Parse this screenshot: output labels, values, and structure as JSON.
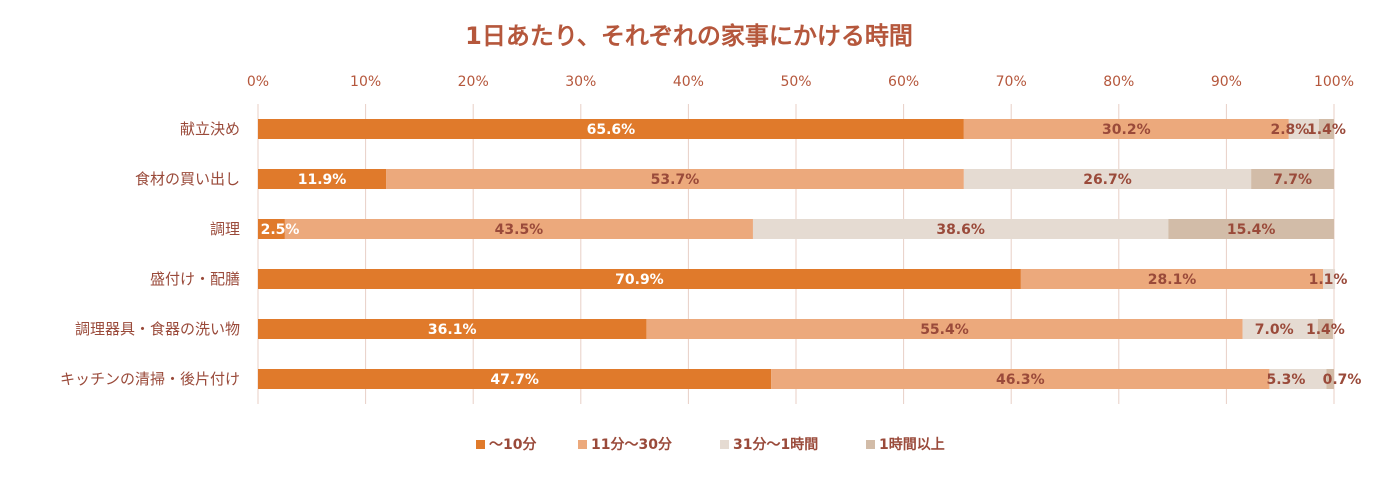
{
  "chart_data": {
    "type": "bar",
    "orientation": "horizontal",
    "stacked": "percent",
    "title": "1日あたり、それぞれの家事にかける時間",
    "x_ticks": [
      "0%",
      "10%",
      "20%",
      "30%",
      "40%",
      "50%",
      "60%",
      "70%",
      "80%",
      "90%",
      "100%"
    ],
    "xlim": [
      0,
      100
    ],
    "categories": [
      "献立決め",
      "食材の買い出し",
      "調理",
      "盛付け・配膳",
      "調理器具・食器の洗い物",
      "キッチンの清掃・後片付け"
    ],
    "series": [
      {
        "name": "～10分",
        "color": "#e07a2b",
        "label_color": "#ffffff",
        "values": [
          65.6,
          11.9,
          2.5,
          70.9,
          36.1,
          47.7
        ],
        "labels": [
          "65.6%",
          "11.9%",
          "2.5%",
          "70.9%",
          "36.1%",
          "47.7%"
        ]
      },
      {
        "name": "11分～30分",
        "color": "#eca97c",
        "label_color": "#9a4a3a",
        "values": [
          30.2,
          53.7,
          43.5,
          28.1,
          55.4,
          46.3
        ],
        "labels": [
          "30.2%",
          "53.7%",
          "43.5%",
          "28.1%",
          "55.4%",
          "46.3%"
        ]
      },
      {
        "name": "31分～1時間",
        "color": "#e5dbd2",
        "label_color": "#9a4a3a",
        "values": [
          2.8,
          26.7,
          38.6,
          1.1,
          7.0,
          5.3
        ],
        "labels": [
          "2.8%",
          "26.7%",
          "38.6%",
          "1.1%",
          "7.0%",
          "5.3%"
        ]
      },
      {
        "name": "1時間以上",
        "color": "#d2bca8",
        "label_color": "#9a4a3a",
        "values": [
          1.4,
          7.7,
          15.4,
          0.0,
          1.4,
          0.7
        ],
        "labels": [
          "1.4%",
          "7.7%",
          "15.4%",
          "",
          "1.4%",
          "0.7%"
        ]
      }
    ],
    "grid": true,
    "legend": "bottom",
    "colors": {
      "title": "#b5573c",
      "text": "#9a4a3a",
      "grid": "#e8cfc6"
    }
  }
}
